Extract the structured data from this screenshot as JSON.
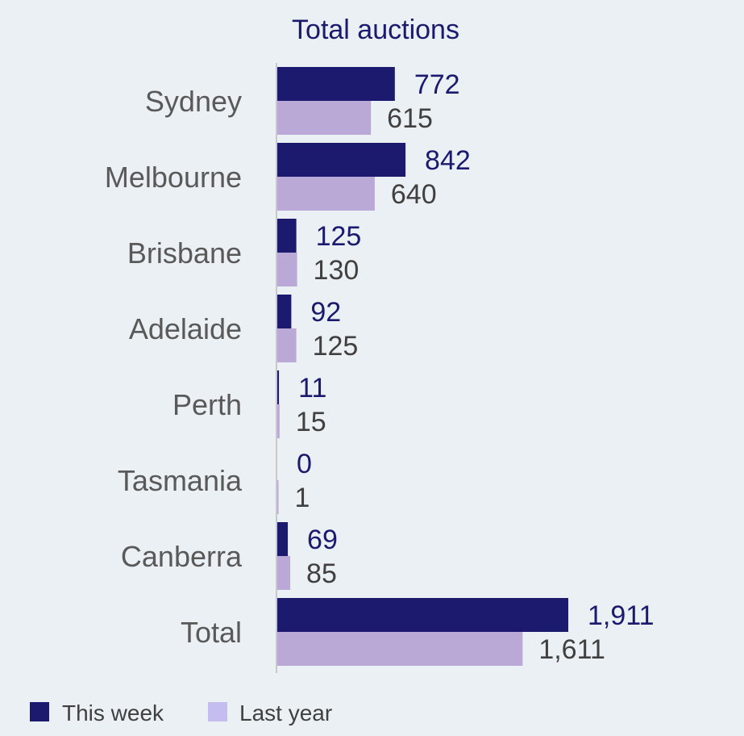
{
  "chart_data": {
    "type": "bar",
    "orientation": "horizontal",
    "title": "Total auctions",
    "categories": [
      "Sydney",
      "Melbourne",
      "Brisbane",
      "Adelaide",
      "Perth",
      "Tasmania",
      "Canberra",
      "Total"
    ],
    "series": [
      {
        "name": "This week",
        "color": "#1c1a6e",
        "values": [
          772,
          842,
          125,
          92,
          11,
          0,
          69,
          1911
        ],
        "labels": [
          "772",
          "842",
          "125",
          "92",
          "11",
          "0",
          "69",
          "1,911"
        ]
      },
      {
        "name": "Last year",
        "color": "#baa9d6",
        "values": [
          615,
          640,
          130,
          125,
          15,
          1,
          85,
          1611
        ],
        "labels": [
          "615",
          "640",
          "130",
          "125",
          "15",
          "1",
          "85",
          "1,611"
        ]
      }
    ],
    "xlabel": "",
    "ylabel": "",
    "xlim": [
      0,
      1911
    ],
    "grid": false,
    "legend_position": "bottom-left"
  },
  "legend_colors": [
    "#1c1a6e",
    "#c5bdf0"
  ]
}
